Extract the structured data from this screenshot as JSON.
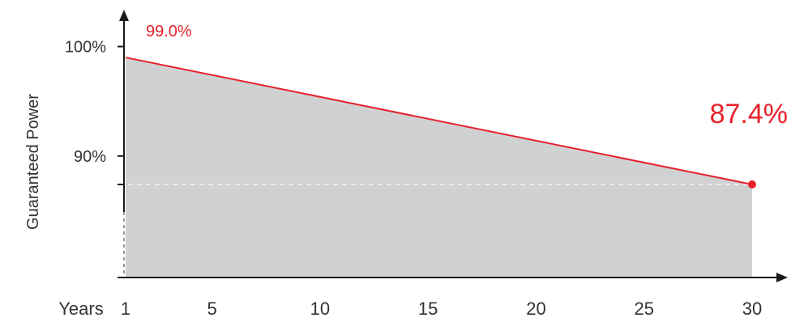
{
  "chart_data": {
    "type": "area",
    "ylabel": "Guaranteed Power",
    "x_axis_title": "Years",
    "x": [
      1,
      30
    ],
    "series": [
      {
        "values": [
          99.0,
          87.4
        ]
      }
    ],
    "x_ticks": [
      1,
      5,
      10,
      15,
      20,
      25,
      30
    ],
    "y_ticks": [
      90,
      100
    ],
    "y_tick_labels": [
      "90%",
      "100%"
    ],
    "xlim": [
      1,
      30
    ],
    "ylim": [
      78.9,
      101.0
    ],
    "start_label": "99.0%",
    "end_label": "87.4%",
    "reference_line_value": 87.4,
    "grid": false,
    "colors": {
      "line": "#e8202a",
      "area": "#d0d1d3",
      "axis": "#1a1a1a",
      "tick_text": "#333333",
      "reference_line": "#f5f5f5"
    }
  }
}
